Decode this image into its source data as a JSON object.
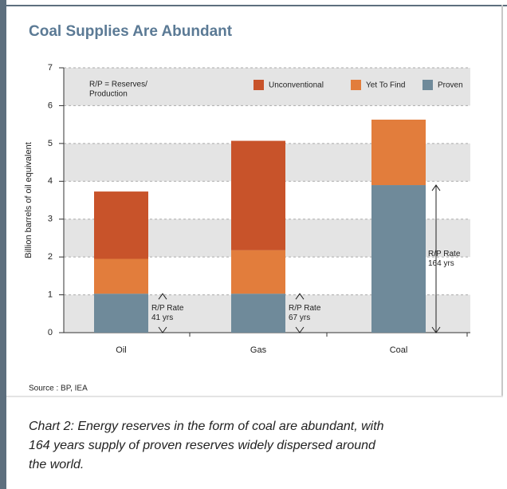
{
  "chart_data": {
    "type": "stacked_bar",
    "title": "Coal Supplies Are Abundant",
    "y_label": "Billion barrels of oil equivalent",
    "categories": [
      "Oil",
      "Gas",
      "Coal"
    ],
    "series": [
      {
        "name": "Unconventional",
        "color": "#c8532a",
        "values": [
          1.78,
          2.89,
          0
        ]
      },
      {
        "name": "Yet To Find",
        "color": "#e27d3c",
        "values": [
          0.92,
          1.15,
          1.73
        ]
      },
      {
        "name": "Proven",
        "color": "#6f8a9a",
        "values": [
          1.03,
          1.03,
          3.9
        ]
      }
    ],
    "ylim": [
      0,
      7
    ],
    "yticks": [
      0,
      1,
      2,
      3,
      4,
      5,
      6,
      7
    ],
    "grid": true,
    "note": [
      "R/P = Reserves/",
      "Production"
    ],
    "annotations": [
      [
        "R/P Rate",
        "41 yrs"
      ],
      [
        "R/P Rate",
        "67 yrs"
      ],
      [
        "R/P Rate",
        "164 yrs"
      ]
    ],
    "source": "Source : BP, IEA",
    "caption": [
      "Chart 2: Energy reserves in the form of coal are abundant, with",
      "164 years supply of proven reserves widely dispersed around",
      "the world."
    ]
  }
}
